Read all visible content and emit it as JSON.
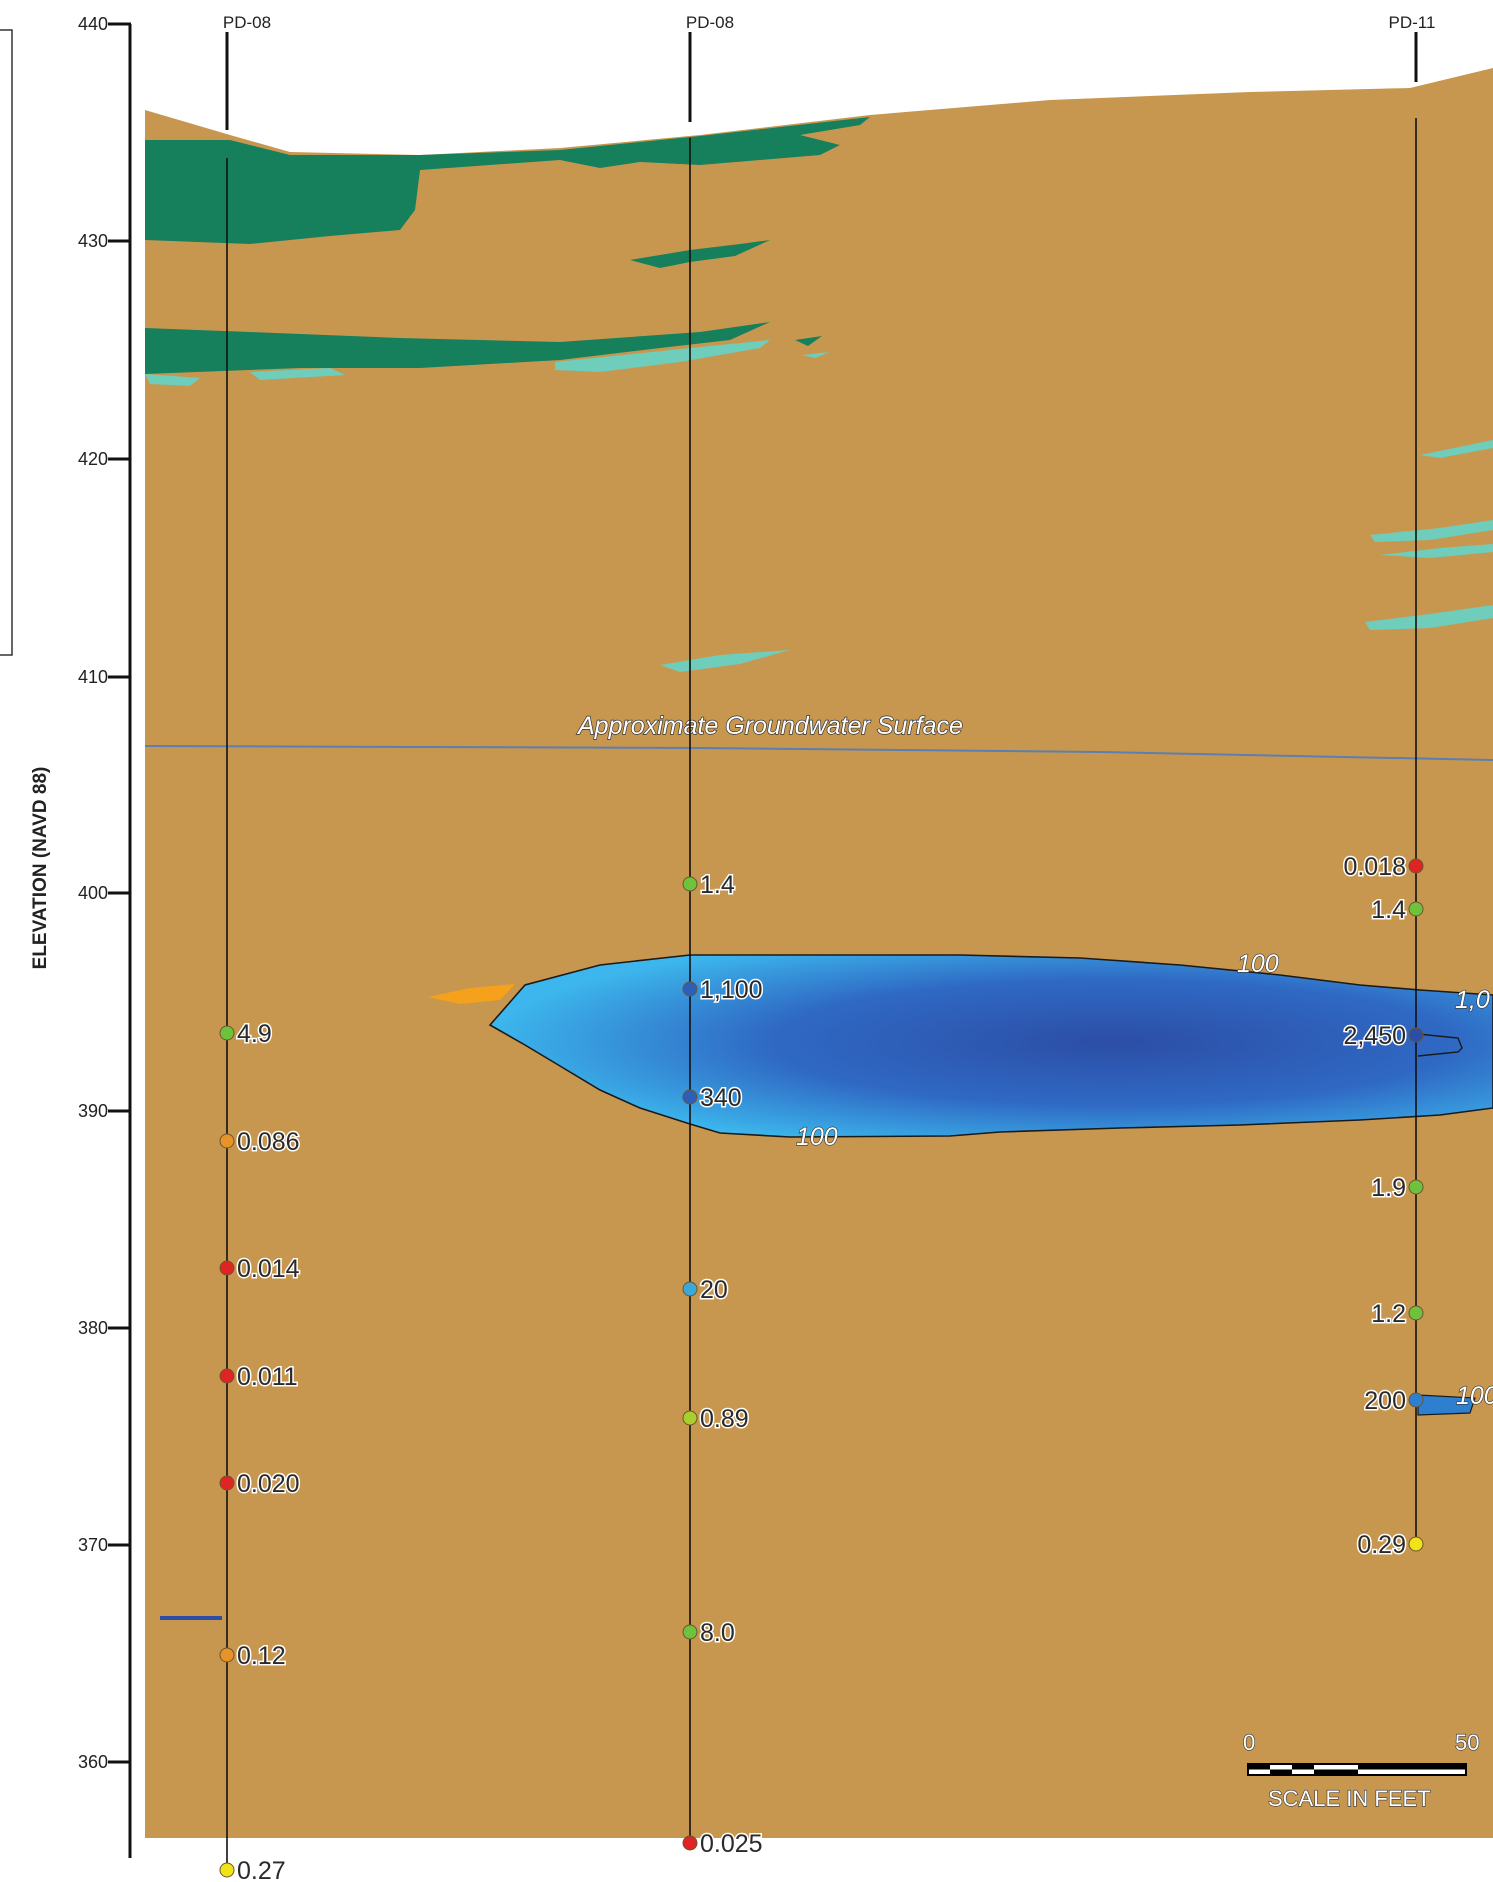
{
  "axis": {
    "title": "ELEVATION (NAVD 88)",
    "ticks": [
      "440",
      "430",
      "420",
      "410",
      "400",
      "390",
      "380",
      "370",
      "360"
    ]
  },
  "wells": [
    {
      "name": "PD-08",
      "samples": [
        {
          "value": "4.9",
          "color": "#6fc23c"
        },
        {
          "value": "0.086",
          "color": "#e8922a"
        },
        {
          "value": "0.014",
          "color": "#e02424"
        },
        {
          "value": "0.011",
          "color": "#e02424"
        },
        {
          "value": "0.020",
          "color": "#e02424"
        },
        {
          "value": "0.12",
          "color": "#e8922a"
        },
        {
          "value": "0.27",
          "color": "#f2e318"
        }
      ]
    },
    {
      "name": "PD-08",
      "samples": [
        {
          "value": "1.4",
          "color": "#6fc23c"
        },
        {
          "value": "1,100",
          "color": "#2e5fb8"
        },
        {
          "value": "340",
          "color": "#2e5fb8"
        },
        {
          "value": "20",
          "color": "#3aa9d8"
        },
        {
          "value": "0.89",
          "color": "#a8cf2e"
        },
        {
          "value": "8.0",
          "color": "#6fc23c"
        },
        {
          "value": "0.025",
          "color": "#e02424"
        }
      ]
    },
    {
      "name": "PD-11",
      "samples": [
        {
          "value": "0.018",
          "color": "#e02424"
        },
        {
          "value": "1.4",
          "color": "#6fc23c"
        },
        {
          "value": "2,450",
          "color": "#2c4ea6"
        },
        {
          "value": "1.9",
          "color": "#6fc23c"
        },
        {
          "value": "1.2",
          "color": "#6fc23c"
        },
        {
          "value": "200",
          "color": "#2e7fd0"
        },
        {
          "value": "0.29",
          "color": "#f2e318"
        }
      ]
    }
  ],
  "contours": {
    "upper": "100",
    "lower": "100",
    "right_upper": "1,0",
    "right_lower": "100"
  },
  "groundwater_label": "Approximate Groundwater Surface",
  "scale": {
    "zero": "0",
    "fifty": "50",
    "caption": "SCALE IN FEET"
  },
  "colors": {
    "soil": "#c8974f",
    "clay": "#167f5b",
    "silt": "#6ecdbb",
    "plume_core": "#2c4ea6",
    "plume_edge": "#3cb6ec",
    "groundwater": "#5b7fb0"
  }
}
